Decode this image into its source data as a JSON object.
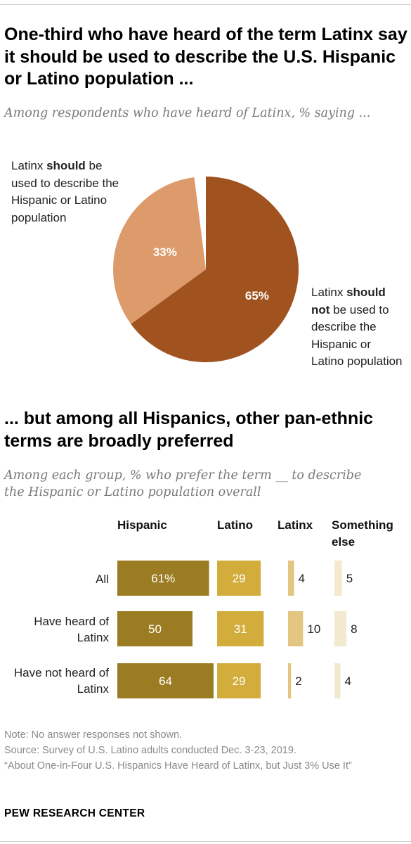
{
  "header": {
    "title": "One-third who have heard of the term Latinx say it should be used to describe the U.S. Hispanic or Latino population ...",
    "subtitle": "Among respondents who have heard of Latinx, % saying ..."
  },
  "pie_labels": {
    "should": {
      "pre": "Latinx ",
      "bold": "should",
      "post": " be used to describe the Hispanic or Latino population"
    },
    "should_not": {
      "pre": "Latinx ",
      "bold1": "should",
      "mid": " ",
      "bold2": "not",
      "post": " be used to describe the Hispanic or Latino population"
    }
  },
  "section2": {
    "title": "... but among all Hispanics, other pan-ethnic terms are broadly preferred",
    "subtitle": "Among each group, % who prefer the term __ to describe the Hispanic or Latino population overall"
  },
  "footer": {
    "note": "Note: No answer responses not shown.",
    "source": "Source: Survey of U.S. Latino adults conducted Dec. 3-23, 2019.",
    "report": "“About One-in-Four U.S. Hispanics Have Heard of Latinx, but Just 3% Use It”",
    "brand": "PEW RESEARCH CENTER"
  },
  "chart_data": [
    {
      "type": "pie",
      "slices": [
        {
          "label": "Latinx should not be used to describe the Hispanic or Latino population",
          "value": 65,
          "value_label": "65%",
          "color": "#a0531f"
        },
        {
          "label": "Latinx should be used to describe the Hispanic or Latino population",
          "value": 33,
          "value_label": "33%",
          "color": "#dd9a6b"
        }
      ],
      "unshown_remainder": 2
    },
    {
      "type": "bar",
      "columns": [
        "Hispanic",
        "Latino",
        "Latinx",
        "Something else"
      ],
      "categories": [
        "All",
        "Have heard of Latinx",
        "Have not heard of Latinx"
      ],
      "series": [
        {
          "name": "Hispanic",
          "values": [
            61,
            50,
            64
          ],
          "labels": [
            "61%",
            "50",
            "64"
          ],
          "color": "#9b7c22",
          "label_inside": true
        },
        {
          "name": "Latino",
          "values": [
            29,
            31,
            29
          ],
          "labels": [
            "29",
            "31",
            "29"
          ],
          "color": "#d2ad3c",
          "label_inside": true
        },
        {
          "name": "Latinx",
          "values": [
            4,
            10,
            2
          ],
          "labels": [
            "4",
            "10",
            "2"
          ],
          "color": "#e2c581",
          "label_inside": false
        },
        {
          "name": "Something else",
          "values": [
            5,
            8,
            4
          ],
          "labels": [
            "5",
            "8",
            "4"
          ],
          "color": "#f3e9cf",
          "label_inside": false
        }
      ]
    }
  ]
}
